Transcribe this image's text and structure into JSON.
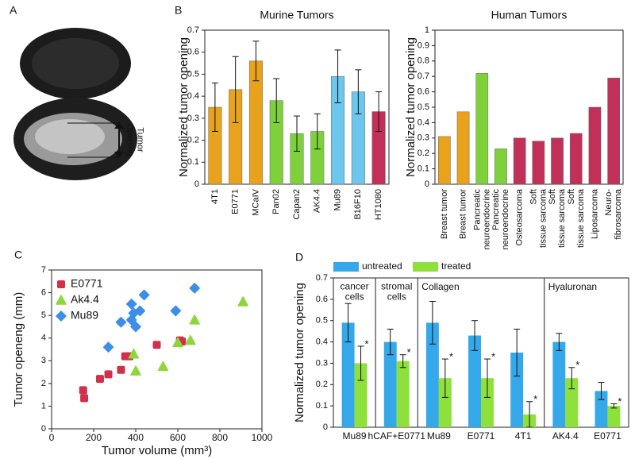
{
  "photo": {
    "panel": "A",
    "label": "Tumor Opening"
  },
  "chart_data": [
    {
      "type": "bar",
      "panel": "B",
      "title": "Murine Tumors",
      "y_label": "Normalized tumor opening",
      "categories": [
        "4T1",
        "E0771",
        "MCaIV",
        "Pan02",
        "Capan2",
        "AK4.4",
        "Mu89",
        "B16F10",
        "HT1080"
      ],
      "values": [
        0.35,
        0.43,
        0.56,
        0.38,
        0.23,
        0.24,
        0.49,
        0.42,
        0.33
      ],
      "errors": [
        0.11,
        0.15,
        0.09,
        0.1,
        0.08,
        0.08,
        0.12,
        0.1,
        0.09
      ],
      "colors": [
        "#e8a21c",
        "#e8a21c",
        "#e8a21c",
        "#7fd13b",
        "#7fd13b",
        "#7fd13b",
        "#6cc6ee",
        "#6cc6ee",
        "#c2305a"
      ],
      "ylim": [
        0,
        0.7
      ],
      "yticks": [
        0,
        0.1,
        0.2,
        0.3,
        0.4,
        0.5,
        0.6,
        0.7
      ]
    },
    {
      "type": "bar",
      "title": "Human Tumors",
      "y_label": "Normalized tumor opening",
      "categories": [
        "Breast tumor",
        "Breast tumor",
        "Pancreatic neuroendocrine",
        "Pancreatic neuroendocrine",
        "Osteosarcoma",
        "Soft tissue sarcoma",
        "Soft tissue sarcoma",
        "Soft tissue sarcoma",
        "Liposarcoma",
        "Neuro- fibrosarcoma"
      ],
      "values": [
        0.31,
        0.47,
        0.72,
        0.23,
        0.3,
        0.28,
        0.3,
        0.33,
        0.5,
        0.69
      ],
      "colors": [
        "#e8a21c",
        "#e8a21c",
        "#7fd13b",
        "#7fd13b",
        "#c2305a",
        "#c2305a",
        "#c2305a",
        "#c2305a",
        "#c2305a",
        "#c2305a"
      ],
      "ylim": [
        0,
        1
      ],
      "yticks": [
        0,
        0.1,
        0.2,
        0.3,
        0.4,
        0.5,
        0.6,
        0.7,
        0.8,
        0.9,
        1
      ]
    },
    {
      "type": "scatter",
      "panel": "C",
      "x_label": "Tumor volume (mm³)",
      "y_label": "Tumor openeng (mm)",
      "legend": "upper left",
      "series": [
        {
          "name": "E0771",
          "color": "#d0304a",
          "marker": "square",
          "x": [
            150,
            155,
            230,
            270,
            330,
            350,
            370,
            500,
            610,
            620
          ],
          "y": [
            1.7,
            1.35,
            2.2,
            2.4,
            2.6,
            3.2,
            3.2,
            3.7,
            3.9,
            3.85
          ]
        },
        {
          "name": "Ak4.4",
          "color": "#8fd63c",
          "marker": "triangle",
          "x": [
            390,
            400,
            530,
            600,
            660,
            680,
            910
          ],
          "y": [
            3.3,
            2.55,
            2.75,
            3.8,
            3.9,
            4.8,
            5.6
          ]
        },
        {
          "name": "Mu89",
          "color": "#3c8ee8",
          "marker": "diamond",
          "x": [
            270,
            330,
            380,
            380,
            390,
            400,
            420,
            440,
            590,
            680
          ],
          "y": [
            3.6,
            4.7,
            5.5,
            4.8,
            5.1,
            4.5,
            5.2,
            5.9,
            5.2,
            6.2
          ]
        }
      ],
      "xlim": [
        0,
        1000
      ],
      "xticks": [
        0,
        200,
        400,
        600,
        800,
        1000
      ],
      "ylim": [
        0,
        7
      ],
      "yticks": [
        0,
        1,
        2,
        3,
        4,
        5,
        6,
        7
      ]
    },
    {
      "type": "grouped_bar",
      "panel": "D",
      "y_label": "Normalized tumor opening",
      "legend": "top",
      "groups": [
        {
          "label": "cancer cells",
          "categories": [
            "Mu89"
          ]
        },
        {
          "label": "stromal cells",
          "categories": [
            "hCAF+E0771"
          ]
        },
        {
          "label": "Collagen",
          "categories": [
            "Mu89",
            "E0771",
            "4T1"
          ]
        },
        {
          "label": "Hyaluronan",
          "categories": [
            "AK4.4",
            "E0771"
          ]
        }
      ],
      "series": [
        {
          "name": "untreated",
          "color": "#35a8ea",
          "values": [
            0.49,
            0.4,
            0.49,
            0.43,
            0.35,
            0.4,
            0.17
          ],
          "errors": [
            0.09,
            0.06,
            0.1,
            0.07,
            0.11,
            0.04,
            0.04
          ]
        },
        {
          "name": "treated",
          "color": "#8ee03a",
          "values": [
            0.3,
            0.31,
            0.23,
            0.23,
            0.06,
            0.23,
            0.1
          ],
          "errors": [
            0.08,
            0.03,
            0.09,
            0.09,
            0.06,
            0.05,
            0.01
          ],
          "annotations": [
            "*",
            "*",
            "*",
            "*",
            "*",
            "*",
            "*"
          ]
        }
      ],
      "ylim": [
        0,
        0.7
      ],
      "yticks": [
        0,
        0.1,
        0.2,
        0.3,
        0.4,
        0.5,
        0.6,
        0.7
      ]
    }
  ]
}
